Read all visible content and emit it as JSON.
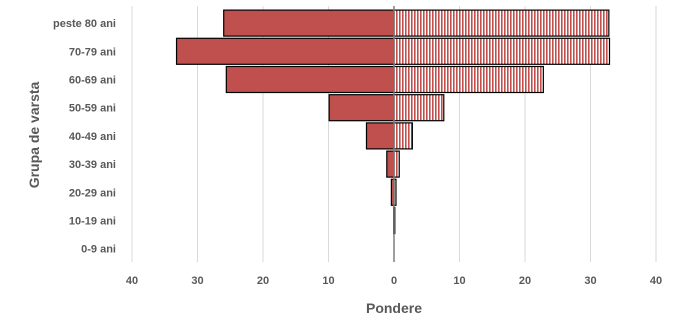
{
  "chart_data": {
    "type": "bar",
    "orientation": "horizontal-diverging",
    "title": "",
    "xlabel": "Pondere",
    "ylabel": "Grupa de varsta",
    "categories": [
      "peste 80 ani",
      "70-79 ani",
      "60-69 ani",
      "50-59 ani",
      "40-49 ani",
      "30-39 ani",
      "20-29 ani",
      "10-19 ani",
      "0-9 ani"
    ],
    "x_ticks": [
      -40,
      -30,
      -20,
      -10,
      0,
      10,
      20,
      30,
      40
    ],
    "x_tick_labels": [
      "40",
      "30",
      "20",
      "10",
      "0",
      "10",
      "20",
      "30",
      "40"
    ],
    "xlim": [
      -40,
      40
    ],
    "grid": true,
    "legend": "none",
    "series": [
      {
        "side": "left",
        "color": "#c0504d",
        "pattern": "solid",
        "values": [
          26,
          33.2,
          25.6,
          9.9,
          4.2,
          1.1,
          0.4,
          0.05,
          0
        ]
      },
      {
        "side": "right",
        "color": "#c0504d",
        "pattern": "vertical-stripes",
        "values": [
          32.8,
          32.9,
          22.8,
          7.6,
          2.8,
          0.8,
          0.3,
          0.05,
          0
        ]
      }
    ]
  }
}
